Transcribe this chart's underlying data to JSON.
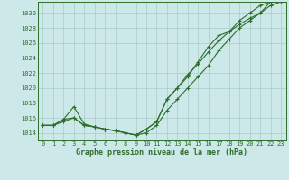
{
  "x": [
    0,
    1,
    2,
    3,
    4,
    5,
    6,
    7,
    8,
    9,
    10,
    11,
    12,
    13,
    14,
    15,
    16,
    17,
    18,
    19,
    20,
    21,
    22,
    23
  ],
  "line1": [
    1015.0,
    1015.0,
    1015.5,
    1016.0,
    1015.0,
    1014.8,
    1014.5,
    1014.3,
    1014.0,
    1013.7,
    1014.0,
    1015.0,
    1017.0,
    1018.5,
    1020.0,
    1021.5,
    1023.0,
    1025.0,
    1026.5,
    1028.0,
    1029.0,
    1030.0,
    1031.5,
    1031.8
  ],
  "line2": [
    1015.0,
    1015.0,
    1015.8,
    1016.0,
    1015.0,
    1014.8,
    1014.5,
    1014.3,
    1014.0,
    1013.7,
    1014.5,
    1015.5,
    1018.5,
    1020.0,
    1021.8,
    1023.2,
    1024.8,
    1026.3,
    1027.5,
    1028.5,
    1029.3,
    1030.0,
    1031.0,
    1031.5
  ],
  "line3": [
    1015.0,
    1015.0,
    1015.8,
    1017.5,
    1015.2,
    1014.8,
    1014.5,
    1014.3,
    1014.0,
    1013.7,
    1014.5,
    1015.5,
    1018.5,
    1020.0,
    1021.5,
    1023.5,
    1025.5,
    1027.0,
    1027.5,
    1029.0,
    1030.0,
    1031.0,
    1031.5,
    1031.5
  ],
  "ylim_min": 1013.0,
  "ylim_max": 1031.5,
  "yticks": [
    1014,
    1016,
    1018,
    1020,
    1022,
    1024,
    1026,
    1028,
    1030
  ],
  "xlim_min": -0.5,
  "xlim_max": 23.5,
  "xticks": [
    0,
    1,
    2,
    3,
    4,
    5,
    6,
    7,
    8,
    9,
    10,
    11,
    12,
    13,
    14,
    15,
    16,
    17,
    18,
    19,
    20,
    21,
    22,
    23
  ],
  "xlabel": "Graphe pression niveau de la mer (hPa)",
  "line_color": "#2d6e2d",
  "bg_color": "#cce8e8",
  "grid_color": "#aacccc",
  "marker": "+",
  "linewidth": 0.8,
  "markersize": 3.5,
  "tick_fontsize": 5.0,
  "xlabel_fontsize": 6.0
}
